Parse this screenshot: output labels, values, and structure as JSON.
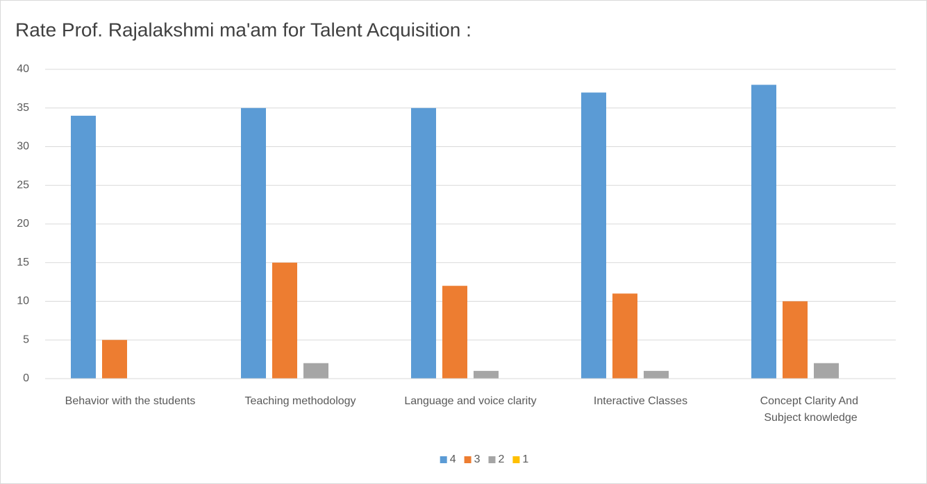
{
  "chart_data": {
    "type": "bar",
    "title": "Rate Prof. Rajalakshmi ma'am  for Talent Acquisition  :",
    "categories": [
      "Behavior with the students",
      "Teaching methodology",
      "Language and voice clarity",
      "Interactive Classes",
      "Concept Clarity And Subject knowledge"
    ],
    "series": [
      {
        "name": "4",
        "color": "#5b9bd5",
        "values": [
          34,
          35,
          35,
          37,
          38
        ]
      },
      {
        "name": "3",
        "color": "#ed7d31",
        "values": [
          5,
          15,
          12,
          11,
          10
        ]
      },
      {
        "name": "2",
        "color": "#a5a5a5",
        "values": [
          0,
          2,
          1,
          1,
          2
        ]
      },
      {
        "name": "1",
        "color": "#ffc000",
        "values": [
          0,
          0,
          0,
          0,
          0
        ]
      }
    ],
    "ylim": [
      0,
      40
    ],
    "yticks": [
      0,
      5,
      10,
      15,
      20,
      25,
      30,
      35,
      40
    ],
    "grid": true,
    "legend": "bottom"
  }
}
